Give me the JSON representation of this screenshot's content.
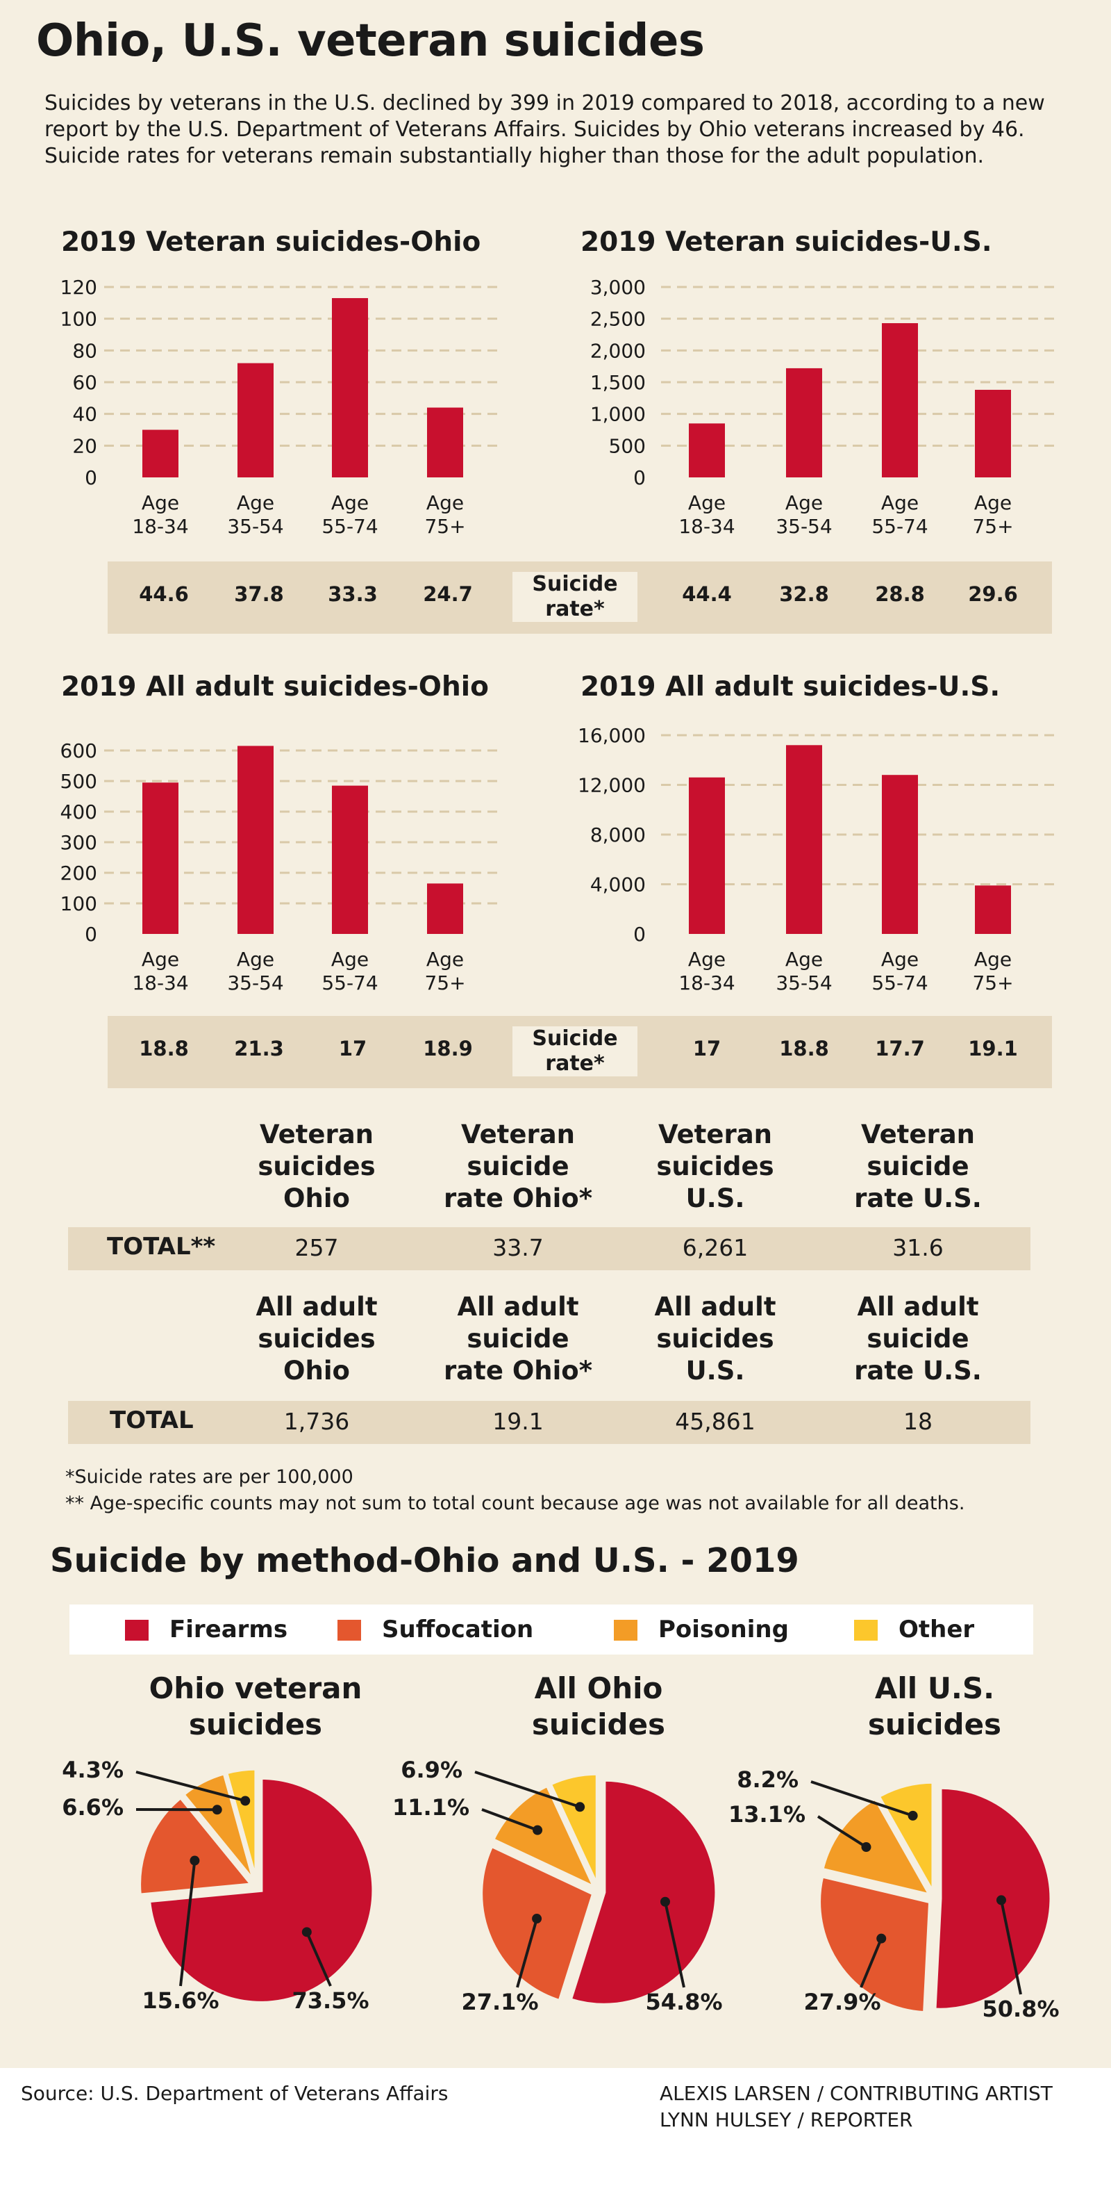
{
  "title": "Ohio, U.S. veteran suicides",
  "intro": "Suicides by veterans in the U.S. declined by 399 in 2019 compared to 2018, according to a new report by the U.S. Department of Veterans Affairs. Suicides by Ohio veterans increased by 46. Suicide rates for veterans remain substantially higher than those for the adult population.",
  "colors": {
    "bar": "#c8102e",
    "firearms": "#c8102e",
    "suffocation": "#e4572e",
    "poisoning": "#f39c26",
    "other": "#fcc72c",
    "grid": "#d9c9a8",
    "background": "#f5efe1",
    "band": "#e6d9c1"
  },
  "rate_label": [
    "Suicide",
    "rate*"
  ],
  "rates": {
    "row1": {
      "ohio": [
        "44.6",
        "37.8",
        "33.3",
        "24.7"
      ],
      "us": [
        "44.4",
        "32.8",
        "28.8",
        "29.6"
      ]
    },
    "row2": {
      "ohio": [
        "18.8",
        "21.3",
        "17",
        "18.9"
      ],
      "us": [
        "17",
        "18.8",
        "17.7",
        "19.1"
      ]
    }
  },
  "totals": {
    "veteran": {
      "headers": [
        [
          "Veteran",
          "suicides",
          "Ohio"
        ],
        [
          "Veteran",
          "suicide",
          "rate Ohio*"
        ],
        [
          "Veteran",
          "suicides",
          "U.S."
        ],
        [
          "Veteran",
          "suicide",
          "rate U.S."
        ]
      ],
      "label": "TOTAL**",
      "values": [
        "257",
        "33.7",
        "6,261",
        "31.6"
      ]
    },
    "adult": {
      "headers": [
        [
          "All adult",
          "suicides",
          "Ohio"
        ],
        [
          "All adult",
          "suicide",
          "rate Ohio*"
        ],
        [
          "All adult",
          "suicides",
          "U.S."
        ],
        [
          "All adult",
          "suicide",
          "rate U.S."
        ]
      ],
      "label": "TOTAL",
      "values": [
        "1,736",
        "19.1",
        "45,861",
        "18"
      ]
    }
  },
  "footnotes": [
    "*Suicide rates are per 100,000",
    "** Age-specific counts may not sum to total count because age was not available for all deaths."
  ],
  "methods_title": "Suicide by method-Ohio and U.S. - 2019",
  "legend": [
    {
      "label": "Firearms",
      "color": "#c8102e"
    },
    {
      "label": "Suffocation",
      "color": "#e4572e"
    },
    {
      "label": "Poisoning",
      "color": "#f39c26"
    },
    {
      "label": "Other",
      "color": "#fcc72c"
    }
  ],
  "pie_titles": [
    [
      "Ohio veteran",
      "suicides"
    ],
    [
      "All Ohio",
      "suicides"
    ],
    [
      "All U.S.",
      "suicides"
    ]
  ],
  "footer": {
    "source": "Source: U.S. Department of Veterans Affairs",
    "credits": [
      "ALEXIS LARSEN / CONTRIBUTING ARTIST",
      "LYNN HULSEY / REPORTER"
    ]
  },
  "chart_data": [
    {
      "type": "bar",
      "title": "2019 Veteran suicides-Ohio",
      "categories": [
        [
          "Age",
          "18-34"
        ],
        [
          "Age",
          "35-54"
        ],
        [
          "Age",
          "55-74"
        ],
        [
          "Age",
          "75+"
        ]
      ],
      "values": [
        30,
        72,
        113,
        44
      ],
      "ylim": [
        0,
        120
      ],
      "yticks": [
        0,
        20,
        40,
        60,
        80,
        100,
        120
      ],
      "ytick_labels": [
        "0",
        "20",
        "40",
        "60",
        "80",
        "100",
        "120"
      ],
      "grid": true
    },
    {
      "type": "bar",
      "title": "2019 Veteran suicides-U.S.",
      "categories": [
        [
          "Age",
          "18-34"
        ],
        [
          "Age",
          "35-54"
        ],
        [
          "Age",
          "55-74"
        ],
        [
          "Age",
          "75+"
        ]
      ],
      "values": [
        850,
        1720,
        2430,
        1380
      ],
      "ylim": [
        0,
        3000
      ],
      "yticks": [
        0,
        500,
        1000,
        1500,
        2000,
        2500,
        3000
      ],
      "ytick_labels": [
        "0",
        "500",
        "1,000",
        "1,500",
        "2,000",
        "2,500",
        "3,000"
      ],
      "grid": true
    },
    {
      "type": "bar",
      "title": "2019 All adult suicides-Ohio",
      "categories": [
        [
          "Age",
          "18-34"
        ],
        [
          "Age",
          "35-54"
        ],
        [
          "Age",
          "55-74"
        ],
        [
          "Age",
          "75+"
        ]
      ],
      "values": [
        495,
        615,
        485,
        165
      ],
      "ylim": [
        0,
        650
      ],
      "yticks": [
        0,
        100,
        200,
        300,
        400,
        500,
        600
      ],
      "ytick_labels": [
        "0",
        "100",
        "200",
        "300",
        "400",
        "500",
        "600"
      ],
      "grid": true
    },
    {
      "type": "bar",
      "title": "2019 All adult suicides-U.S.",
      "categories": [
        [
          "Age",
          "18-34"
        ],
        [
          "Age",
          "35-54"
        ],
        [
          "Age",
          "55-74"
        ],
        [
          "Age",
          "75+"
        ]
      ],
      "values": [
        12600,
        15200,
        12800,
        3900
      ],
      "ylim": [
        0,
        16000
      ],
      "yticks": [
        0,
        4000,
        8000,
        12000,
        16000
      ],
      "ytick_labels": [
        "0",
        "4,000",
        "8,000",
        "12,000",
        "16,000"
      ],
      "grid": true
    },
    {
      "type": "pie",
      "title": "Ohio veteran suicides",
      "slices": [
        {
          "label": "Firearms",
          "value": 73.5,
          "text": "73.5%"
        },
        {
          "label": "Suffocation",
          "value": 15.6,
          "text": "15.6%"
        },
        {
          "label": "Poisoning",
          "value": 6.6,
          "text": "6.6%"
        },
        {
          "label": "Other",
          "value": 4.3,
          "text": "4.3%"
        }
      ]
    },
    {
      "type": "pie",
      "title": "All Ohio suicides",
      "slices": [
        {
          "label": "Firearms",
          "value": 54.8,
          "text": "54.8%"
        },
        {
          "label": "Suffocation",
          "value": 27.1,
          "text": "27.1%"
        },
        {
          "label": "Poisoning",
          "value": 11.1,
          "text": "11.1%"
        },
        {
          "label": "Other",
          "value": 6.9,
          "text": "6.9%"
        }
      ]
    },
    {
      "type": "pie",
      "title": "All U.S. suicides",
      "slices": [
        {
          "label": "Firearms",
          "value": 50.8,
          "text": "50.8%"
        },
        {
          "label": "Suffocation",
          "value": 27.9,
          "text": "27.9%"
        },
        {
          "label": "Poisoning",
          "value": 13.1,
          "text": "13.1%"
        },
        {
          "label": "Other",
          "value": 8.2,
          "text": "8.2%"
        }
      ]
    }
  ]
}
